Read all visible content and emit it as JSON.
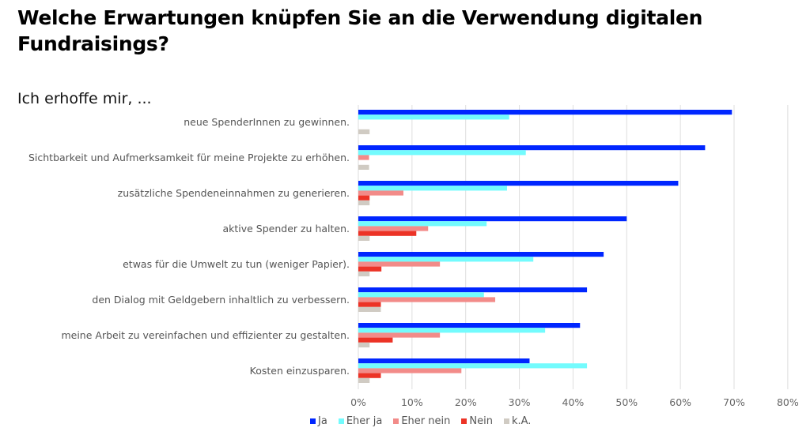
{
  "header": {
    "title": "Welche Erwartungen knüpfen Sie an die Verwendung digitalen Fundraisings?",
    "subtitle": "Ich erhoffe mir, ..."
  },
  "chart_data": {
    "type": "bar",
    "orientation": "horizontal",
    "title": "Welche Erwartungen knüpfen Sie an die Verwendung digitalen Fundraisings?",
    "subtitle": "Ich erhoffe mir, ...",
    "xlabel": "",
    "ylabel": "",
    "xlim": [
      0,
      80
    ],
    "x_ticks": [
      "0%",
      "10%",
      "20%",
      "30%",
      "40%",
      "50%",
      "60%",
      "70%",
      "80%"
    ],
    "grid": true,
    "legend_position": "bottom",
    "categories": [
      "neue SpenderInnen zu gewinnen.",
      "Sichtbarkeit und Aufmerksamkeit für meine Projekte zu erhöhen.",
      "zusätzliche Spendeneinnahmen zu generieren.",
      "aktive Spender zu halten.",
      "etwas für die Umwelt zu tun (weniger Papier).",
      "den Dialog mit Geldgebern inhaltlich zu verbessern.",
      "meine Arbeit zu vereinfachen und effizienter zu gestalten.",
      "Kosten einzusparen."
    ],
    "series": [
      {
        "name": "Ja",
        "color": "#0026ff",
        "values": [
          69.6,
          64.6,
          59.6,
          50.0,
          45.7,
          42.6,
          41.3,
          31.9
        ]
      },
      {
        "name": "Eher ja",
        "color": "#73fbfd",
        "values": [
          28.1,
          31.2,
          27.7,
          23.9,
          32.6,
          23.4,
          34.8,
          42.6
        ]
      },
      {
        "name": "Eher nein",
        "color": "#f28b89",
        "values": [
          0,
          2.0,
          8.4,
          13.0,
          15.2,
          25.5,
          15.2,
          19.2
        ]
      },
      {
        "name": "Nein",
        "color": "#ec3326",
        "values": [
          0,
          0,
          2.1,
          10.8,
          4.3,
          4.2,
          6.4,
          4.2
        ]
      },
      {
        "name": "k.A.",
        "color": "#d0cbc3",
        "values": [
          2.1,
          2.0,
          2.1,
          2.1,
          2.1,
          4.2,
          2.1,
          2.1
        ]
      }
    ]
  }
}
